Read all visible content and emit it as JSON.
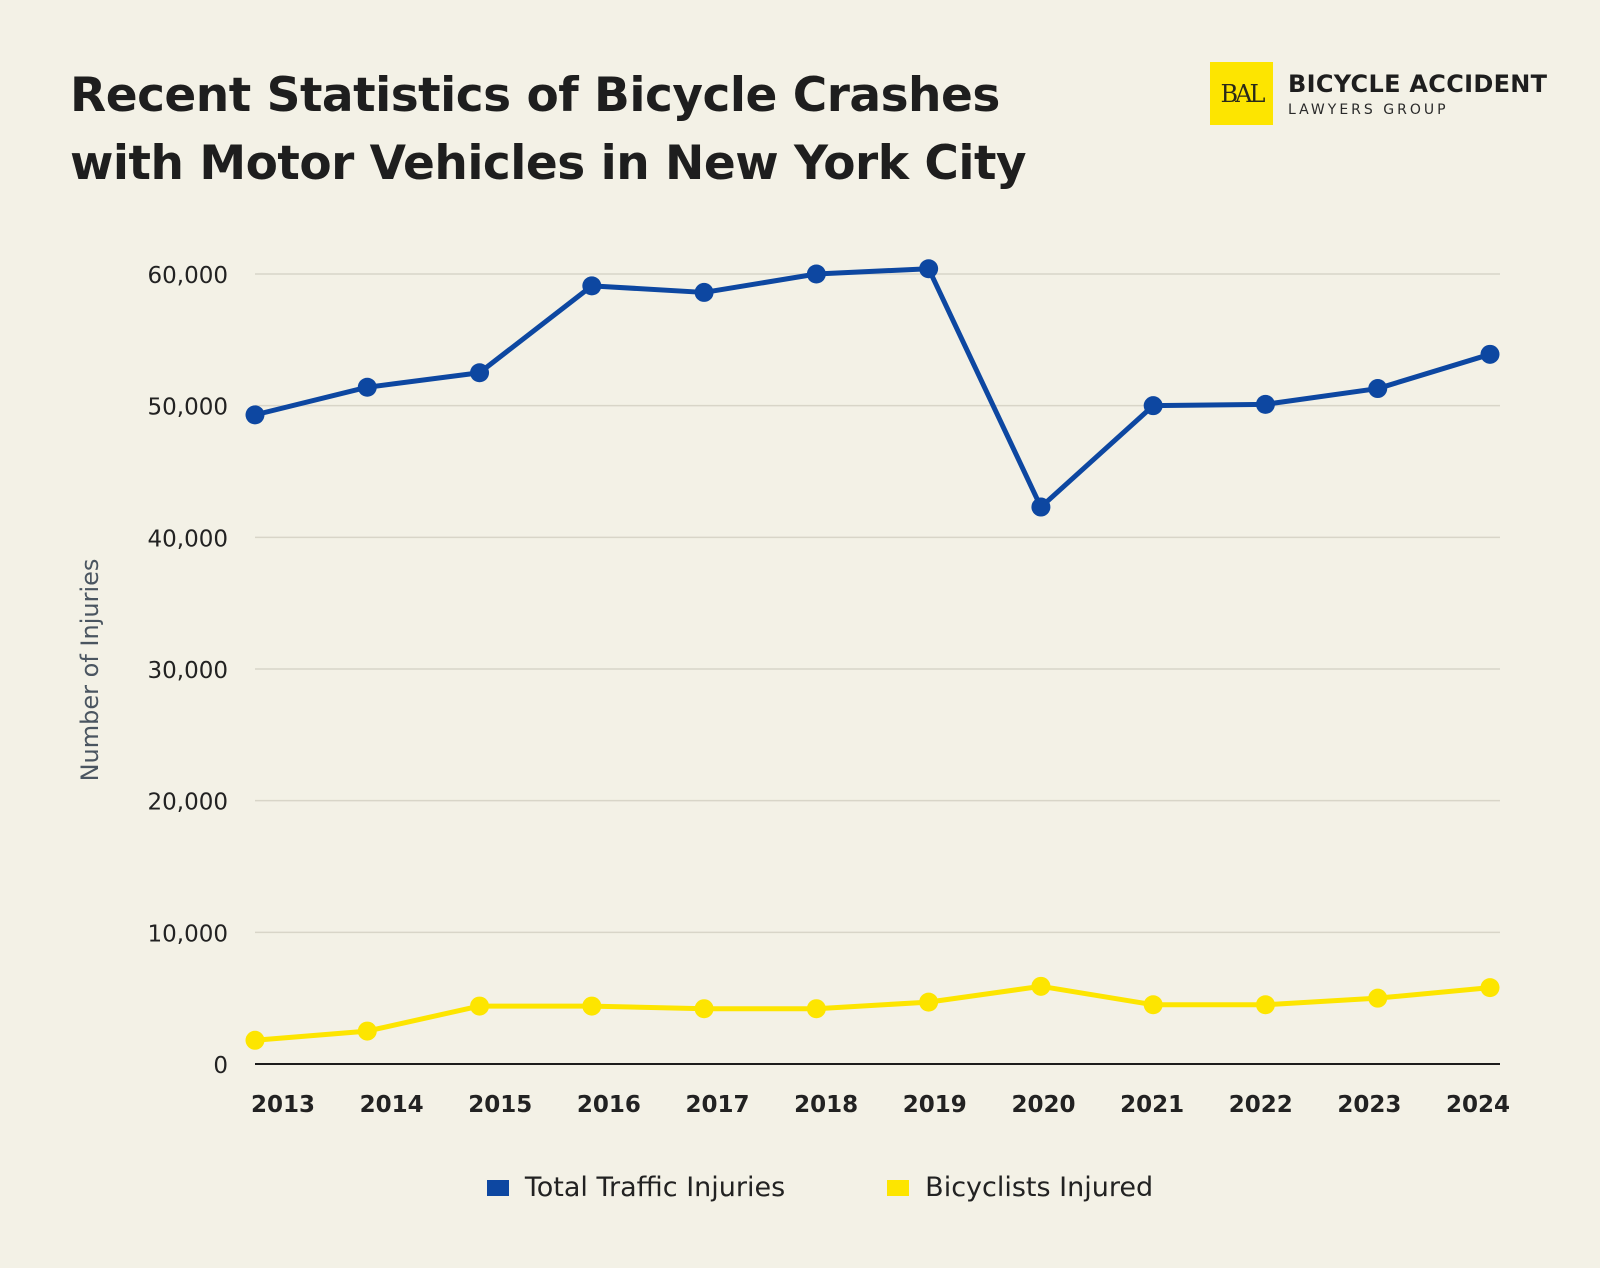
{
  "header": {
    "title": "Recent Statistics of Bicycle Crashes with Motor Vehicles in New York City"
  },
  "logo": {
    "mark": "BAL",
    "line1": "BICYCLE ACCIDENT",
    "line2": "LAWYERS GROUP",
    "color": "#fde500"
  },
  "chart_data": {
    "type": "line",
    "title": "Recent Statistics of Bicycle Crashes with Motor Vehicles in New York City",
    "xlabel": "",
    "ylabel": "Number of Injuries",
    "ylim": [
      0,
      60000
    ],
    "yticks": [
      0,
      10000,
      20000,
      30000,
      40000,
      50000,
      60000
    ],
    "ytick_labels": [
      "0",
      "10,000",
      "20,000",
      "30,000",
      "40,000",
      "50,000",
      "60,000"
    ],
    "grid": true,
    "legend_position": "bottom",
    "categories": [
      "2013",
      "2014",
      "2015",
      "2016",
      "2017",
      "2018",
      "2019",
      "2020",
      "2021",
      "2022",
      "2023",
      "2024"
    ],
    "series": [
      {
        "name": "Total Traffic Injuries",
        "color": "#0d47a1",
        "values": [
          49300,
          51400,
          52500,
          59100,
          58600,
          60000,
          60400,
          42300,
          50000,
          50100,
          51300,
          53900
        ]
      },
      {
        "name": "Bicyclists Injured",
        "color": "#fde500",
        "values": [
          1800,
          2500,
          4400,
          4400,
          4200,
          4200,
          4700,
          5900,
          4500,
          4500,
          5000,
          5800
        ]
      }
    ]
  }
}
